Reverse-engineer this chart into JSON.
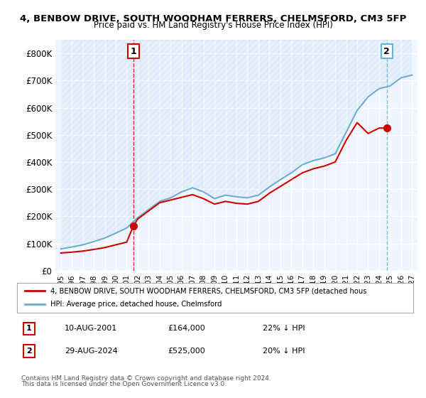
{
  "title1": "4, BENBOW DRIVE, SOUTH WOODHAM FERRERS, CHELMSFORD, CM3 5FP",
  "title2": "Price paid vs. HM Land Registry's House Price Index (HPI)",
  "legend_line1": "4, BENBOW DRIVE, SOUTH WOODHAM FERRERS, CHELMSFORD, CM3 5FP (detached hous",
  "legend_line2": "HPI: Average price, detached house, Chelmsford",
  "note1": "Contains HM Land Registry data © Crown copyright and database right 2024.",
  "note2": "This data is licensed under the Open Government Licence v3.0.",
  "annotation1": {
    "num": "1",
    "date": "10-AUG-2001",
    "price": "£164,000",
    "pct": "22% ↓ HPI"
  },
  "annotation2": {
    "num": "2",
    "date": "29-AUG-2024",
    "price": "£525,000",
    "pct": "20% ↓ HPI"
  },
  "ylim": [
    0,
    850000
  ],
  "yticks": [
    0,
    100000,
    200000,
    300000,
    400000,
    500000,
    600000,
    700000,
    800000
  ],
  "ytick_labels": [
    "£0",
    "£100K",
    "£200K",
    "£300K",
    "£400K",
    "£500K",
    "£600K",
    "£700K",
    "£800K"
  ],
  "hpi_color": "#6baed6",
  "price_color": "#cc0000",
  "annotation_color": "#cc0000",
  "background_color": "#f0f4ff",
  "grid_color": "#ffffff",
  "hpi_x": [
    1995,
    1996,
    1997,
    1998,
    1999,
    2000,
    2001,
    2002,
    2003,
    2004,
    2005,
    2006,
    2007,
    2008,
    2009,
    2010,
    2011,
    2012,
    2013,
    2014,
    2015,
    2016,
    2017,
    2018,
    2019,
    2020,
    2021,
    2022,
    2023,
    2024,
    2025,
    2026,
    2027
  ],
  "hpi_y": [
    80000,
    87000,
    95000,
    107000,
    120000,
    138000,
    157000,
    195000,
    225000,
    255000,
    268000,
    290000,
    305000,
    290000,
    265000,
    278000,
    272000,
    268000,
    278000,
    308000,
    335000,
    360000,
    390000,
    405000,
    415000,
    430000,
    510000,
    590000,
    640000,
    670000,
    680000,
    710000,
    720000
  ],
  "price_x": [
    1995,
    1996,
    1997,
    1998,
    1999,
    2000,
    2001,
    2001.6,
    2002,
    2003,
    2004,
    2005,
    2006,
    2007,
    2008,
    2009,
    2010,
    2011,
    2012,
    2013,
    2014,
    2015,
    2016,
    2017,
    2018,
    2019,
    2020,
    2021,
    2022,
    2023,
    2024,
    2024.7
  ],
  "price_y": [
    65000,
    68000,
    72000,
    78000,
    85000,
    95000,
    105000,
    164000,
    190000,
    220000,
    250000,
    260000,
    270000,
    280000,
    265000,
    245000,
    255000,
    248000,
    245000,
    255000,
    285000,
    310000,
    335000,
    360000,
    375000,
    385000,
    400000,
    480000,
    545000,
    505000,
    525000,
    525000
  ],
  "marker1_x": 2001.6,
  "marker1_y": 164000,
  "marker2_x": 2024.7,
  "marker2_y": 525000,
  "vline1_x": 2001.6,
  "vline2_x": 2024.7,
  "xtick_years": [
    1995,
    1996,
    1997,
    1998,
    1999,
    2000,
    2001,
    2002,
    2003,
    2004,
    2005,
    2006,
    2007,
    2008,
    2009,
    2010,
    2011,
    2012,
    2013,
    2014,
    2015,
    2016,
    2017,
    2018,
    2019,
    2020,
    2021,
    2022,
    2023,
    2024,
    2025,
    2026,
    2027
  ],
  "hatch_color": "#6baed6",
  "fill_alpha": 0.15
}
